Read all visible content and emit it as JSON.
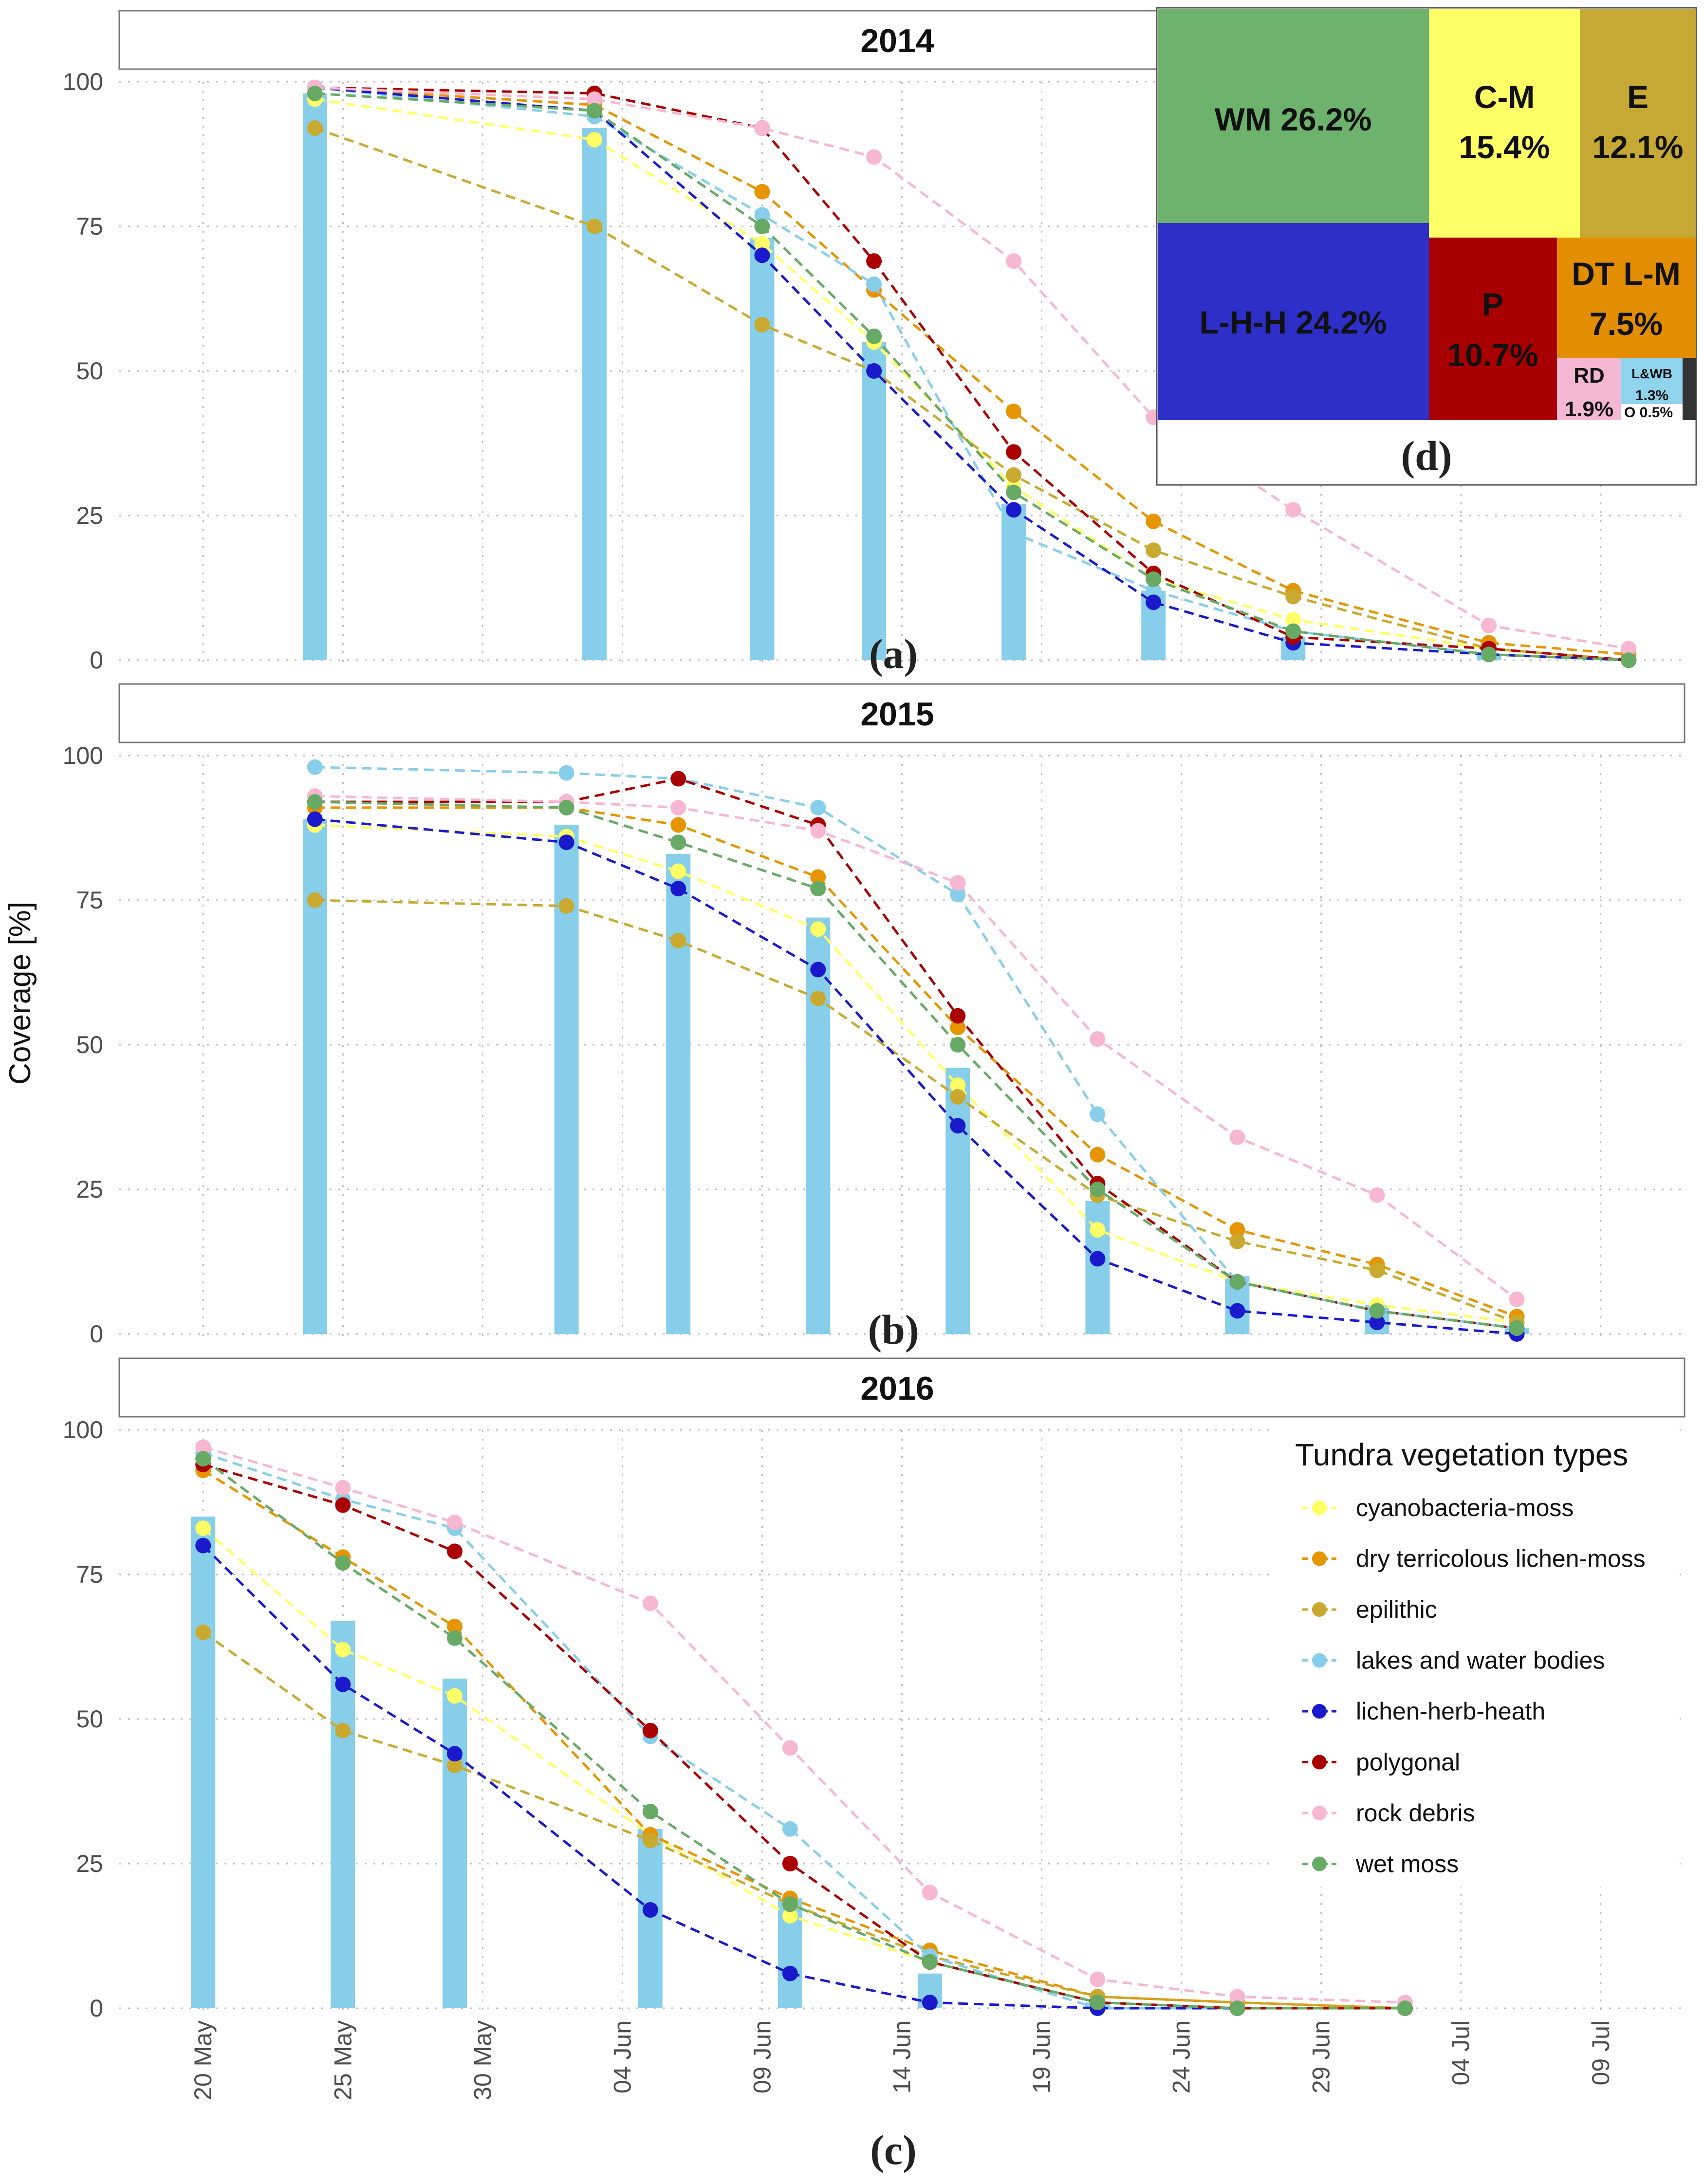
{
  "chart_data": [
    {
      "type": "line",
      "id": "a",
      "panel_title": "2014",
      "panel_letter": "(a)",
      "ylabel": "Coverage [%]",
      "ylim": [
        0,
        100
      ],
      "yticks": [
        0,
        25,
        50,
        75,
        100
      ],
      "xlim": [
        "2014-05-17",
        "2014-07-12"
      ],
      "xticks": [
        "20 May",
        "25 May",
        "30 May",
        "04 Jun",
        "09 Jun",
        "14 Jun",
        "19 Jun",
        "24 Jun",
        "29 Jun",
        "04 Jul",
        "09 Jul"
      ],
      "grid": true,
      "bars": {
        "name": "overall snow coverage",
        "color": "#87ceeb",
        "x": [
          "2014-05-24",
          "2014-06-03",
          "2014-06-09",
          "2014-06-13",
          "2014-06-18",
          "2014-06-23",
          "2014-06-28",
          "2014-07-05",
          "2014-07-10"
        ],
        "values": [
          98,
          92,
          73,
          55,
          27,
          12,
          4,
          1,
          0
        ]
      },
      "x": [
        "2014-05-24",
        "2014-06-03",
        "2014-06-09",
        "2014-06-13",
        "2014-06-18",
        "2014-06-23",
        "2014-06-28",
        "2014-07-05",
        "2014-07-10"
      ],
      "series": [
        {
          "name": "cyanobacteria-moss",
          "color": "#ffff66",
          "values": [
            97,
            90,
            72,
            55,
            30,
            14,
            7,
            2,
            0
          ]
        },
        {
          "name": "dry terricolous lichen-moss",
          "color": "#e69500",
          "values": [
            99,
            96,
            81,
            64,
            43,
            24,
            12,
            3,
            1
          ]
        },
        {
          "name": "epilithic",
          "color": "#c9a930",
          "values": [
            92,
            75,
            58,
            50,
            32,
            19,
            11,
            2,
            0
          ]
        },
        {
          "name": "lakes and water bodies",
          "color": "#87ceeb",
          "values": [
            99,
            94,
            77,
            65,
            22,
            12,
            5,
            1,
            0
          ]
        },
        {
          "name": "lichen-herb-heath",
          "color": "#1a1acc",
          "values": [
            99,
            95,
            70,
            50,
            26,
            10,
            3,
            1,
            0
          ]
        },
        {
          "name": "polygonal",
          "color": "#aa0000",
          "values": [
            99,
            98,
            92,
            69,
            36,
            15,
            4,
            2,
            0
          ]
        },
        {
          "name": "rock debris",
          "color": "#f7b6d2",
          "values": [
            99,
            97,
            92,
            87,
            69,
            42,
            26,
            6,
            2
          ]
        },
        {
          "name": "wet moss",
          "color": "#66aa66",
          "values": [
            98,
            95,
            75,
            56,
            29,
            14,
            5,
            1,
            0
          ]
        }
      ]
    },
    {
      "type": "line",
      "id": "b",
      "panel_title": "2015",
      "panel_letter": "(b)",
      "ylim": [
        0,
        100
      ],
      "yticks": [
        0,
        25,
        50,
        75,
        100
      ],
      "xlim": [
        "2015-05-17",
        "2015-07-12"
      ],
      "grid": true,
      "bars": {
        "name": "overall snow coverage",
        "color": "#87ceeb",
        "x": [
          "2015-05-24",
          "2015-06-02",
          "2015-06-06",
          "2015-06-11",
          "2015-06-16",
          "2015-06-21",
          "2015-06-26",
          "2015-07-01",
          "2015-07-06"
        ],
        "values": [
          89,
          88,
          83,
          72,
          46,
          23,
          10,
          5,
          1
        ]
      },
      "x": [
        "2015-05-24",
        "2015-06-02",
        "2015-06-06",
        "2015-06-11",
        "2015-06-16",
        "2015-06-21",
        "2015-06-26",
        "2015-07-01",
        "2015-07-06"
      ],
      "series": [
        {
          "name": "cyanobacteria-moss",
          "color": "#ffff66",
          "values": [
            88,
            86,
            80,
            70,
            43,
            18,
            9,
            5,
            2
          ]
        },
        {
          "name": "dry terricolous lichen-moss",
          "color": "#e69500",
          "values": [
            91,
            91,
            88,
            79,
            53,
            31,
            18,
            12,
            3
          ]
        },
        {
          "name": "epilithic",
          "color": "#c9a930",
          "values": [
            75,
            74,
            68,
            58,
            41,
            24,
            16,
            11,
            2
          ]
        },
        {
          "name": "lakes and water bodies",
          "color": "#87ceeb",
          "values": [
            98,
            97,
            96,
            91,
            76,
            38,
            9,
            4,
            1
          ]
        },
        {
          "name": "lichen-herb-heath",
          "color": "#1a1acc",
          "values": [
            89,
            85,
            77,
            63,
            36,
            13,
            4,
            2,
            0
          ]
        },
        {
          "name": "polygonal",
          "color": "#aa0000",
          "values": [
            92,
            92,
            96,
            88,
            55,
            26,
            9,
            4,
            1
          ]
        },
        {
          "name": "rock debris",
          "color": "#f7b6d2",
          "values": [
            93,
            92,
            91,
            87,
            78,
            51,
            34,
            24,
            6
          ]
        },
        {
          "name": "wet moss",
          "color": "#66aa66",
          "values": [
            92,
            91,
            85,
            77,
            50,
            25,
            9,
            4,
            1
          ]
        }
      ]
    },
    {
      "type": "line",
      "id": "c",
      "panel_title": "2016",
      "panel_letter": "(c)",
      "ylim": [
        0,
        100
      ],
      "yticks": [
        0,
        25,
        50,
        75,
        100
      ],
      "xlim": [
        "2016-05-17",
        "2016-07-12"
      ],
      "grid": true,
      "bars": {
        "name": "overall snow coverage",
        "color": "#87ceeb",
        "x": [
          "2016-05-20",
          "2016-05-25",
          "2016-05-29",
          "2016-06-05",
          "2016-06-10",
          "2016-06-15",
          "2016-06-21",
          "2016-06-26",
          "2016-07-02"
        ],
        "values": [
          85,
          67,
          57,
          31,
          19,
          6,
          1,
          0,
          0
        ]
      },
      "x": [
        "2016-05-20",
        "2016-05-25",
        "2016-05-29",
        "2016-06-05",
        "2016-06-10",
        "2016-06-15",
        "2016-06-21",
        "2016-06-26",
        "2016-07-02"
      ],
      "series": [
        {
          "name": "cyanobacteria-moss",
          "color": "#ffff66",
          "values": [
            83,
            62,
            54,
            30,
            16,
            8,
            1,
            0,
            0
          ]
        },
        {
          "name": "dry terricolous lichen-moss",
          "color": "#e69500",
          "values": [
            93,
            78,
            66,
            30,
            19,
            10,
            2,
            1,
            0
          ]
        },
        {
          "name": "epilithic",
          "color": "#c9a930",
          "values": [
            65,
            48,
            42,
            29,
            18,
            9,
            2,
            1,
            0
          ]
        },
        {
          "name": "lakes and water bodies",
          "color": "#87ceeb",
          "values": [
            96,
            88,
            83,
            47,
            31,
            9,
            0,
            0,
            0
          ]
        },
        {
          "name": "lichen-herb-heath",
          "color": "#1a1acc",
          "values": [
            80,
            56,
            44,
            17,
            6,
            1,
            0,
            0,
            0
          ]
        },
        {
          "name": "polygonal",
          "color": "#aa0000",
          "values": [
            94,
            87,
            79,
            48,
            25,
            8,
            1,
            0,
            0
          ]
        },
        {
          "name": "rock debris",
          "color": "#f7b6d2",
          "values": [
            97,
            90,
            84,
            70,
            45,
            20,
            5,
            2,
            1
          ]
        },
        {
          "name": "wet moss",
          "color": "#66aa66",
          "values": [
            95,
            77,
            64,
            34,
            18,
            8,
            1,
            0,
            0
          ]
        }
      ]
    },
    {
      "type": "treemap",
      "id": "d",
      "panel_letter": "(d)",
      "items": [
        {
          "label": "WM",
          "value": "26.2%",
          "color": "#6db36d"
        },
        {
          "label": "L-H-H",
          "value": "24.2%",
          "color": "#2e2ec8"
        },
        {
          "label": "C-M",
          "value": "15.4%",
          "color": "#ffff66"
        },
        {
          "label": "E",
          "value": "12.1%",
          "color": "#c6a935"
        },
        {
          "label": "P",
          "value": "10.7%",
          "color": "#a80000"
        },
        {
          "label": "DT L-M",
          "value": "7.5%",
          "color": "#e28e00"
        },
        {
          "label": "RD",
          "value": "1.9%",
          "color": "#f4b8d4"
        },
        {
          "label": "L&WB",
          "value": "1.3%",
          "color": "#8fd3ec"
        },
        {
          "label": "O",
          "value": "0.5%",
          "color": "#333333"
        }
      ]
    }
  ],
  "legend": {
    "title": "Tundra vegetation types",
    "items": [
      {
        "name": "cyanobacteria-moss",
        "color": "#ffff66"
      },
      {
        "name": "dry terricolous lichen-moss",
        "color": "#e69500"
      },
      {
        "name": "epilithic",
        "color": "#c9a930"
      },
      {
        "name": "lakes and water bodies",
        "color": "#87ceeb"
      },
      {
        "name": "lichen-herb-heath",
        "color": "#1a1acc"
      },
      {
        "name": "polygonal",
        "color": "#aa0000"
      },
      {
        "name": "rock debris",
        "color": "#f7b6d2"
      },
      {
        "name": "wet moss",
        "color": "#66aa66"
      }
    ]
  }
}
